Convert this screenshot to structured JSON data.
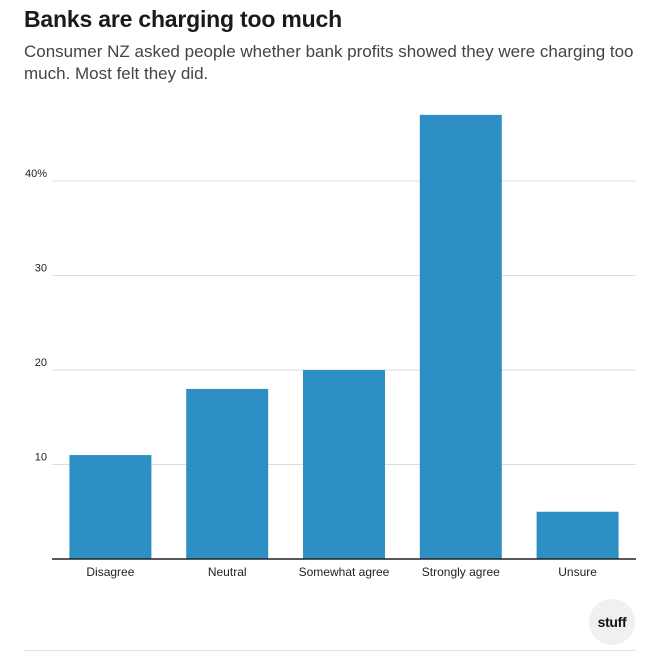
{
  "title": "Banks are charging too much",
  "subtitle": "Consumer NZ asked people whether bank profits showed they were charging too much. Most felt they did.",
  "brand": "stuff",
  "chart_data": {
    "type": "bar",
    "categories": [
      "Disagree",
      "Neutral",
      "Somewhat agree",
      "Strongly agree",
      "Unsure"
    ],
    "values": [
      11,
      18,
      20,
      47,
      5
    ],
    "yticks": [
      10,
      20,
      30,
      40
    ],
    "ytick_labels": [
      "10",
      "20",
      "30",
      "40%"
    ],
    "ylim": [
      0,
      50
    ],
    "grid": true,
    "bar_color": "#2e8fc4",
    "xlabel": "",
    "ylabel": ""
  }
}
